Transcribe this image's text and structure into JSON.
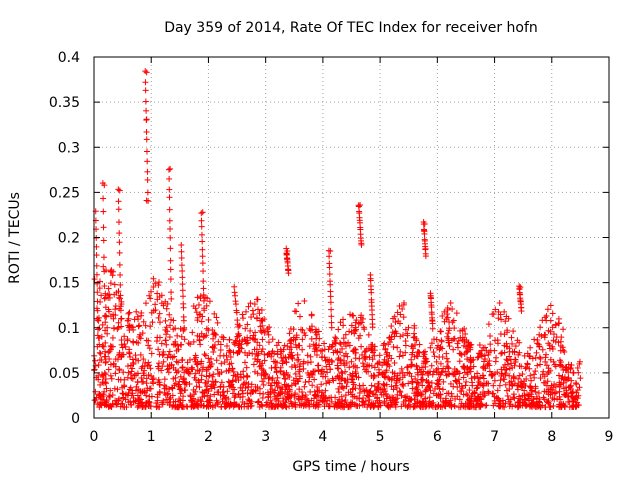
{
  "chart_data": {
    "type": "scatter",
    "title": "Day 359 of 2014, Rate Of TEC Index for receiver hofn",
    "xlabel": "GPS time / hours",
    "ylabel": "ROTI / TECUs",
    "xlim": [
      0,
      9
    ],
    "ylim": [
      0,
      0.4
    ],
    "xticks": [
      0,
      1,
      2,
      3,
      4,
      5,
      6,
      7,
      8,
      9
    ],
    "xtick_labels": [
      "0",
      "1",
      "2",
      "3",
      "4",
      "5",
      "6",
      "7",
      "8",
      "9"
    ],
    "yticks": [
      0,
      0.05,
      0.1,
      0.15,
      0.2,
      0.25,
      0.3,
      0.35,
      0.4
    ],
    "ytick_labels": [
      "0",
      "0.05",
      "0.1",
      "0.15",
      "0.2",
      "0.25",
      "0.3",
      "0.35",
      "0.4"
    ],
    "grid": true,
    "marker": "+",
    "color": "#ff0000",
    "series": [
      {
        "name": "ROTI",
        "x_range": [
          0,
          8.5
        ],
        "notable_points": [
          {
            "x": 0.92,
            "y": 0.383
          },
          {
            "x": 0.92,
            "y": 0.331
          },
          {
            "x": 1.33,
            "y": 0.276
          },
          {
            "x": 0.18,
            "y": 0.258
          },
          {
            "x": 0.45,
            "y": 0.252
          },
          {
            "x": 0.92,
            "y": 0.241
          },
          {
            "x": 4.65,
            "y": 0.236
          },
          {
            "x": 1.9,
            "y": 0.228
          },
          {
            "x": 5.78,
            "y": 0.215
          },
          {
            "x": 3.38,
            "y": 0.185
          },
          {
            "x": 4.13,
            "y": 0.185
          },
          {
            "x": 7.45,
            "y": 0.145
          }
        ]
      }
    ]
  }
}
